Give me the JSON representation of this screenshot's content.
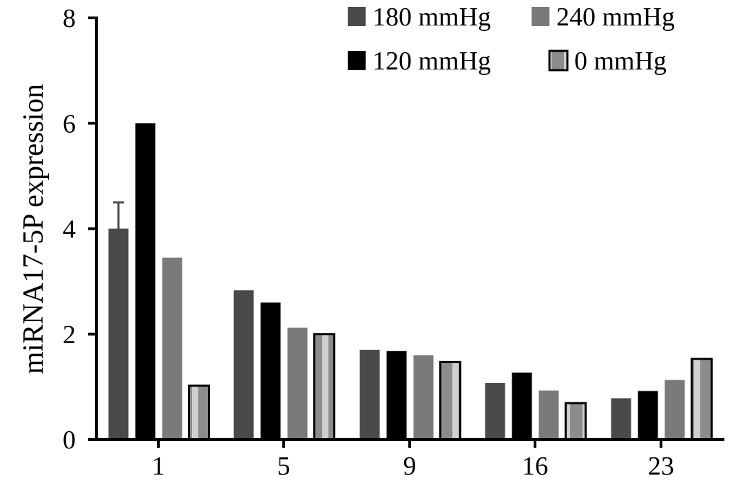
{
  "chart_data": {
    "type": "bar",
    "title": "",
    "xlabel": "",
    "ylabel": "miRNA17-5P expression",
    "ylim": [
      0,
      8
    ],
    "yticks": [
      "0",
      "2",
      "4",
      "6",
      "8"
    ],
    "categories": [
      "1",
      "5",
      "9",
      "16",
      "23"
    ],
    "legend_position": "top-right",
    "series": [
      {
        "name": "180 mmHg",
        "color": "#4a4a4a",
        "pattern": "solid",
        "values": [
          4.0,
          2.83,
          1.7,
          1.07,
          0.78
        ],
        "errors": [
          0.5,
          0,
          0,
          0,
          0
        ]
      },
      {
        "name": "120 mmHg",
        "color": "#000000",
        "pattern": "solid",
        "values": [
          6.0,
          2.6,
          1.68,
          1.27,
          0.92
        ],
        "errors": [
          0,
          0,
          0,
          0,
          0
        ]
      },
      {
        "name": "240 mmHg",
        "color": "#7a7a7a",
        "pattern": "solid",
        "values": [
          3.45,
          2.12,
          1.6,
          0.93,
          1.13
        ],
        "errors": [
          0,
          0,
          0,
          0,
          0
        ]
      },
      {
        "name": "0 mmHg",
        "color": "#9a9a9a",
        "pattern": "vertical-stripes",
        "values": [
          1.02,
          2.0,
          1.47,
          0.69,
          1.53
        ],
        "errors": [
          0,
          0,
          0,
          0,
          0
        ]
      }
    ]
  }
}
